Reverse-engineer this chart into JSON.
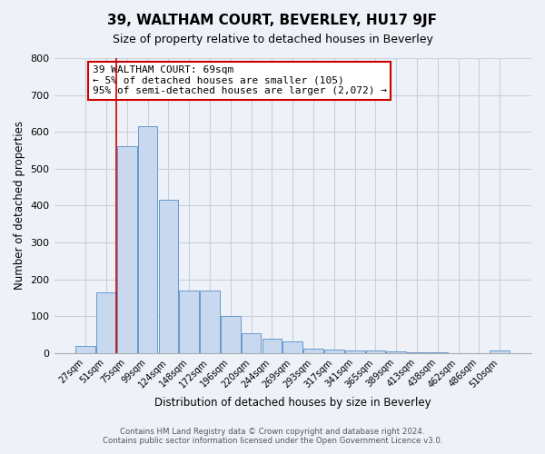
{
  "title": "39, WALTHAM COURT, BEVERLEY, HU17 9JF",
  "subtitle": "Size of property relative to detached houses in Beverley",
  "xlabel": "Distribution of detached houses by size in Beverley",
  "ylabel": "Number of detached properties",
  "bar_labels": [
    "27sqm",
    "51sqm",
    "75sqm",
    "99sqm",
    "124sqm",
    "148sqm",
    "172sqm",
    "196sqm",
    "220sqm",
    "244sqm",
    "269sqm",
    "293sqm",
    "317sqm",
    "341sqm",
    "365sqm",
    "389sqm",
    "413sqm",
    "438sqm",
    "462sqm",
    "486sqm",
    "510sqm"
  ],
  "bar_heights": [
    20,
    165,
    560,
    615,
    415,
    170,
    170,
    100,
    55,
    40,
    32,
    13,
    10,
    8,
    8,
    5,
    3,
    2,
    0,
    0,
    7
  ],
  "bar_color": "#c8d9ef",
  "bar_edge_color": "#6699cc",
  "ylim": [
    0,
    800
  ],
  "yticks": [
    0,
    100,
    200,
    300,
    400,
    500,
    600,
    700,
    800
  ],
  "annotation_box_text": "39 WALTHAM COURT: 69sqm\n← 5% of detached houses are smaller (105)\n95% of semi-detached houses are larger (2,072) →",
  "annotation_box_color": "#ffffff",
  "annotation_box_edge_color": "#cc0000",
  "vline_color": "#cc0000",
  "grid_color": "#c8d0de",
  "background_color": "#eef2f8",
  "footer_line1": "Contains HM Land Registry data © Crown copyright and database right 2024.",
  "footer_line2": "Contains public sector information licensed under the Open Government Licence v3.0."
}
